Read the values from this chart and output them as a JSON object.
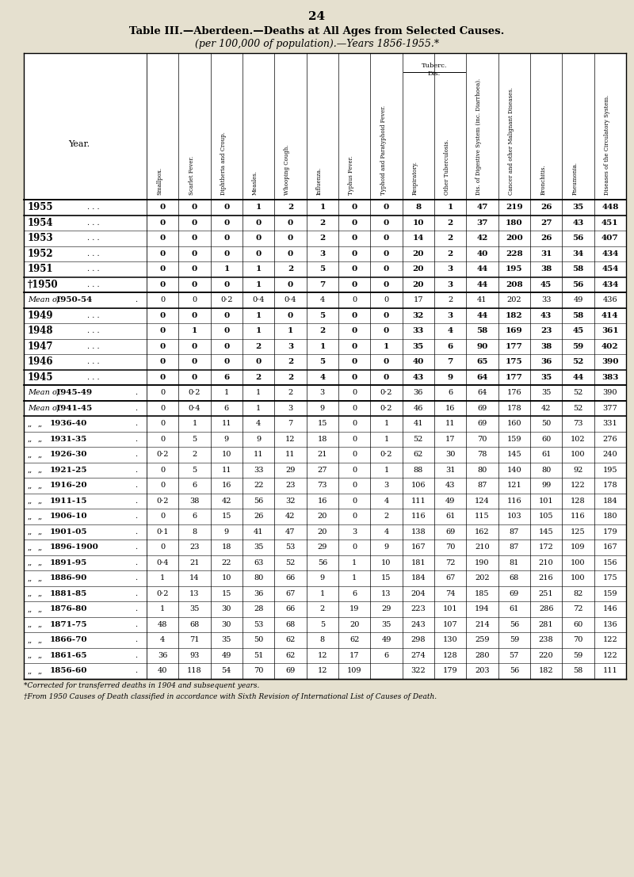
{
  "page_num": "24",
  "title_line1": "Table III.—Aberdeen.—Deaths at All Ages from Selected Causes.",
  "title_line2": "(per 100,000 of population).—Years 1856-1955.*",
  "col_headers": [
    "Smallpox.",
    "Scarlet Fever.",
    "Diphtheria and Croup.",
    "Measles.",
    "Whooping Cough.",
    "Influenza.",
    "Typhus Fever.",
    "Typhoid and Paratyphoid Fever.",
    "Respiratory.",
    "Other Tuberculosis.",
    "Dis. of Digestive System (inc. Diarrhoea).",
    "Cancer and other Malignant Diseases.",
    "Bronchitis.",
    "Pneumonia.",
    "Diseases of the Circulatory System."
  ],
  "rows": [
    {
      "year": "1955",
      "style": "bold",
      "dots": ". . .",
      "vals": [
        "0",
        "0",
        "0",
        "1",
        "2",
        "1",
        "0",
        "0",
        "8",
        "1",
        "47",
        "219",
        "26",
        "35",
        "448"
      ]
    },
    {
      "year": "1954",
      "style": "bold",
      "dots": ". . .",
      "vals": [
        "0",
        "0",
        "0",
        "0",
        "0",
        "2",
        "0",
        "0",
        "10",
        "2",
        "37",
        "180",
        "27",
        "43",
        "451"
      ]
    },
    {
      "year": "1953",
      "style": "bold",
      "dots": ". . .",
      "vals": [
        "0",
        "0",
        "0",
        "0",
        "0",
        "2",
        "0",
        "0",
        "14",
        "2",
        "42",
        "200",
        "26",
        "56",
        "407"
      ]
    },
    {
      "year": "1952",
      "style": "bold",
      "dots": ". . .",
      "vals": [
        "0",
        "0",
        "0",
        "0",
        "0",
        "3",
        "0",
        "0",
        "20",
        "2",
        "40",
        "228",
        "31",
        "34",
        "434"
      ]
    },
    {
      "year": "1951",
      "style": "bold",
      "dots": ". . .",
      "vals": [
        "0",
        "0",
        "1",
        "1",
        "2",
        "5",
        "0",
        "0",
        "20",
        "3",
        "44",
        "195",
        "38",
        "58",
        "454"
      ]
    },
    {
      "year": "’1950",
      "style": "bold",
      "dots": ". . .",
      "vals": [
        "0",
        "0",
        "0",
        "1",
        "0",
        "7",
        "0",
        "0",
        "20",
        "3",
        "44",
        "208",
        "45",
        "56",
        "434"
      ]
    },
    {
      "year": "Mean of 1950-54",
      "style": "italic",
      "dots": ".",
      "vals": [
        "0",
        "0",
        "0·2",
        "0·4",
        "0·4",
        "4",
        "0",
        "0",
        "17",
        "2",
        "41",
        "202",
        "33",
        "49",
        "436"
      ]
    },
    {
      "year": "1949",
      "style": "bold",
      "dots": ". . .",
      "vals": [
        "0",
        "0",
        "0",
        "1",
        "0",
        "5",
        "0",
        "0",
        "32",
        "3",
        "44",
        "182",
        "43",
        "58",
        "414"
      ]
    },
    {
      "year": "1948",
      "style": "bold",
      "dots": ". . .",
      "vals": [
        "0",
        "1",
        "0",
        "1",
        "1",
        "2",
        "0",
        "0",
        "33",
        "4",
        "58",
        "169",
        "23",
        "45",
        "361"
      ]
    },
    {
      "year": "1947",
      "style": "bold",
      "dots": ". . .",
      "vals": [
        "0",
        "0",
        "0",
        "2",
        "3",
        "1",
        "0",
        "1",
        "35",
        "6",
        "90",
        "177",
        "38",
        "59",
        "402"
      ]
    },
    {
      "year": "1946",
      "style": "bold",
      "dots": ". . .",
      "vals": [
        "0",
        "0",
        "0",
        "0",
        "2",
        "5",
        "0",
        "0",
        "40",
        "7",
        "65",
        "175",
        "36",
        "52",
        "390"
      ]
    },
    {
      "year": "1945",
      "style": "bold",
      "dots": ". . .",
      "vals": [
        "0",
        "0",
        "6",
        "2",
        "2",
        "4",
        "0",
        "0",
        "43",
        "9",
        "64",
        "177",
        "35",
        "44",
        "383"
      ]
    },
    {
      "year": "Mean of 1945-49",
      "style": "italic",
      "dots": ".",
      "vals": [
        "0",
        "0·2",
        "1",
        "1",
        "2",
        "3",
        "0",
        "0·2",
        "36",
        "6",
        "64",
        "176",
        "35",
        "52",
        "390"
      ]
    },
    {
      "year": "Mean of 1941-45",
      "style": "italic",
      "dots": ".",
      "vals": [
        "0",
        "0·4",
        "6",
        "1",
        "3",
        "9",
        "0",
        "0·2",
        "46",
        "16",
        "69",
        "178",
        "42",
        "52",
        "377"
      ]
    },
    {
      "year": ",, ,, 1936-40",
      "style": "normal",
      "dots": ".",
      "vals": [
        "0",
        "1",
        "11",
        "4",
        "7",
        "15",
        "0",
        "1",
        "41",
        "11",
        "69",
        "160",
        "50",
        "73",
        "331"
      ]
    },
    {
      "year": ",, ,, 1931-35",
      "style": "normal",
      "dots": ".",
      "vals": [
        "0",
        "5",
        "9",
        "9",
        "12",
        "18",
        "0",
        "1",
        "52",
        "17",
        "70",
        "159",
        "60",
        "102",
        "276"
      ]
    },
    {
      "year": ",, ,, 1926-30",
      "style": "normal",
      "dots": ".",
      "vals": [
        "0·2",
        "2",
        "10",
        "11",
        "11",
        "21",
        "0",
        "0·2",
        "62",
        "30",
        "78",
        "145",
        "61",
        "100",
        "240"
      ]
    },
    {
      "year": ",, ,, 1921-25",
      "style": "normal",
      "dots": ".",
      "vals": [
        "0",
        "5",
        "11",
        "33",
        "29",
        "27",
        "0",
        "1",
        "88",
        "31",
        "80",
        "140",
        "80",
        "92",
        "195"
      ]
    },
    {
      "year": ",, ,, 1916-20",
      "style": "normal",
      "dots": ".",
      "vals": [
        "0",
        "6",
        "16",
        "22",
        "23",
        "73",
        "0",
        "3",
        "106",
        "43",
        "87",
        "121",
        "99",
        "122",
        "178"
      ]
    },
    {
      "year": ",, ,, 1911-15",
      "style": "normal",
      "dots": ".",
      "vals": [
        "0·2",
        "38",
        "42",
        "56",
        "32",
        "16",
        "0",
        "4",
        "111",
        "49",
        "124",
        "116",
        "101",
        "128",
        "184"
      ]
    },
    {
      "year": ",, ,, 1906-10",
      "style": "normal",
      "dots": ".",
      "vals": [
        "0",
        "6",
        "15",
        "26",
        "42",
        "20",
        "0",
        "2",
        "116",
        "61",
        "115",
        "103",
        "105",
        "116",
        "180"
      ]
    },
    {
      "year": ",, ,, 1901-05",
      "style": "normal",
      "dots": ".",
      "vals": [
        "0·1",
        "8",
        "9",
        "41",
        "47",
        "20",
        "3",
        "4",
        "138",
        "69",
        "162",
        "87",
        "145",
        "125",
        "179"
      ]
    },
    {
      "year": ",, ,, 1896-1900",
      "style": "normal",
      "dots": ".",
      "vals": [
        "0",
        "23",
        "18",
        "35",
        "53",
        "29",
        "0",
        "9",
        "167",
        "70",
        "210",
        "87",
        "172",
        "109",
        "167"
      ]
    },
    {
      "year": ",, ,, 1891-95",
      "style": "normal",
      "dots": ".",
      "vals": [
        "0·4",
        "21",
        "22",
        "63",
        "52",
        "56",
        "1",
        "10",
        "181",
        "72",
        "190",
        "81",
        "210",
        "100",
        "156"
      ]
    },
    {
      "year": ",, ,, 1886-90",
      "style": "normal",
      "dots": ".",
      "vals": [
        "1",
        "14",
        "10",
        "80",
        "66",
        "9",
        "1",
        "15",
        "184",
        "67",
        "202",
        "68",
        "216",
        "100",
        "175"
      ]
    },
    {
      "year": ",, ,, 1881-85",
      "style": "normal",
      "dots": ".",
      "vals": [
        "0·2",
        "13",
        "15",
        "36",
        "67",
        "1",
        "6",
        "13",
        "204",
        "74",
        "185",
        "69",
        "251",
        "82",
        "159"
      ]
    },
    {
      "year": ",, ,, 1876-80",
      "style": "normal",
      "dots": ".",
      "vals": [
        "1",
        "35",
        "30",
        "28",
        "66",
        "2",
        "19",
        "29",
        "223",
        "101",
        "194",
        "61",
        "286",
        "72",
        "146"
      ]
    },
    {
      "year": ",, ,, 1871-75",
      "style": "normal",
      "dots": ".",
      "vals": [
        "48",
        "68",
        "30",
        "53",
        "68",
        "5",
        "20",
        "35",
        "243",
        "107",
        "214",
        "56",
        "281",
        "60",
        "136"
      ]
    },
    {
      "year": ",, ,, 1866-70",
      "style": "normal",
      "dots": ".",
      "vals": [
        "4",
        "71",
        "35",
        "50",
        "62",
        "8",
        "62",
        "49",
        "298",
        "130",
        "259",
        "59",
        "238",
        "70",
        "122"
      ]
    },
    {
      "year": ",, ,, 1861-65",
      "style": "normal",
      "dots": ".",
      "vals": [
        "36",
        "93",
        "49",
        "51",
        "62",
        "12",
        "17",
        "6",
        "274",
        "128",
        "280",
        "57",
        "220",
        "59",
        "122"
      ]
    },
    {
      "year": ",, ,, 1856-60",
      "style": "normal",
      "dots": ".",
      "vals": [
        "40",
        "118",
        "54",
        "70",
        "69",
        "12",
        "109",
        "",
        "322",
        "179",
        "203",
        "56",
        "182",
        "58",
        "111"
      ]
    }
  ],
  "thick_after_rows": [
    0,
    5,
    6,
    11,
    12,
    13
  ],
  "footnote1": "*Corrected for transferred deaths in 1904 and subsequent years.",
  "footnote2": "†From 1950 Causes of Death classified in accordance with Sixth Revision of International List of Causes of Death.",
  "bg_color": "#e5e0cf",
  "table_bg": "#ffffff"
}
